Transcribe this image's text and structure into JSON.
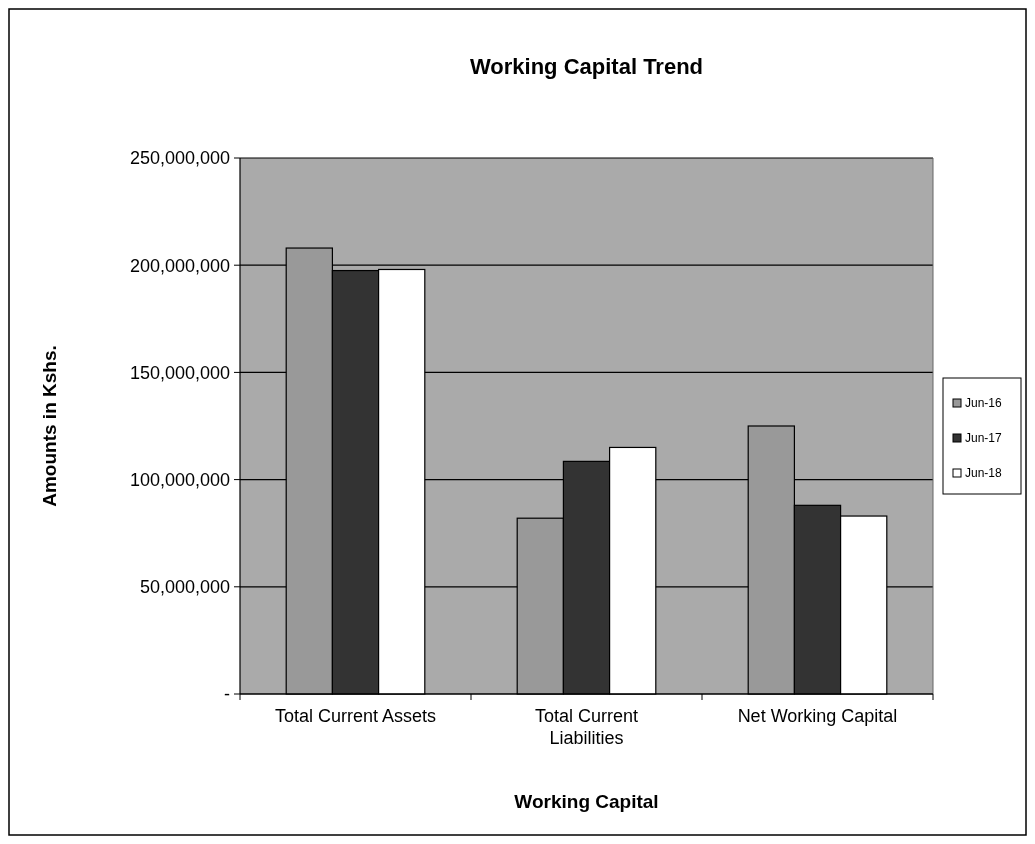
{
  "chart_data": {
    "type": "bar",
    "title": "Working Capital Trend",
    "xlabel": "Working Capital",
    "ylabel": "Amounts in Kshs.",
    "categories": [
      "Total Current Assets",
      "Total Current Liabilities",
      "Net Working Capital"
    ],
    "series": [
      {
        "name": "Jun-16",
        "color": "#999999",
        "values": [
          208000000,
          82000000,
          125000000
        ]
      },
      {
        "name": "Jun-17",
        "color": "#333333",
        "values": [
          197500000,
          108500000,
          88000000
        ]
      },
      {
        "name": "Jun-18",
        "color": "#ffffff",
        "values": [
          198000000,
          115000000,
          83000000
        ]
      }
    ],
    "ylim": [
      0,
      250000000
    ],
    "yticks": [
      {
        "value": 0,
        "label": "-"
      },
      {
        "value": 50000000,
        "label": "50,000,000"
      },
      {
        "value": 100000000,
        "label": "100,000,000"
      },
      {
        "value": 150000000,
        "label": "150,000,000"
      },
      {
        "value": 200000000,
        "label": "200,000,000"
      },
      {
        "value": 250000000,
        "label": "250,000,000"
      }
    ],
    "grid": "y",
    "legend": "right"
  }
}
